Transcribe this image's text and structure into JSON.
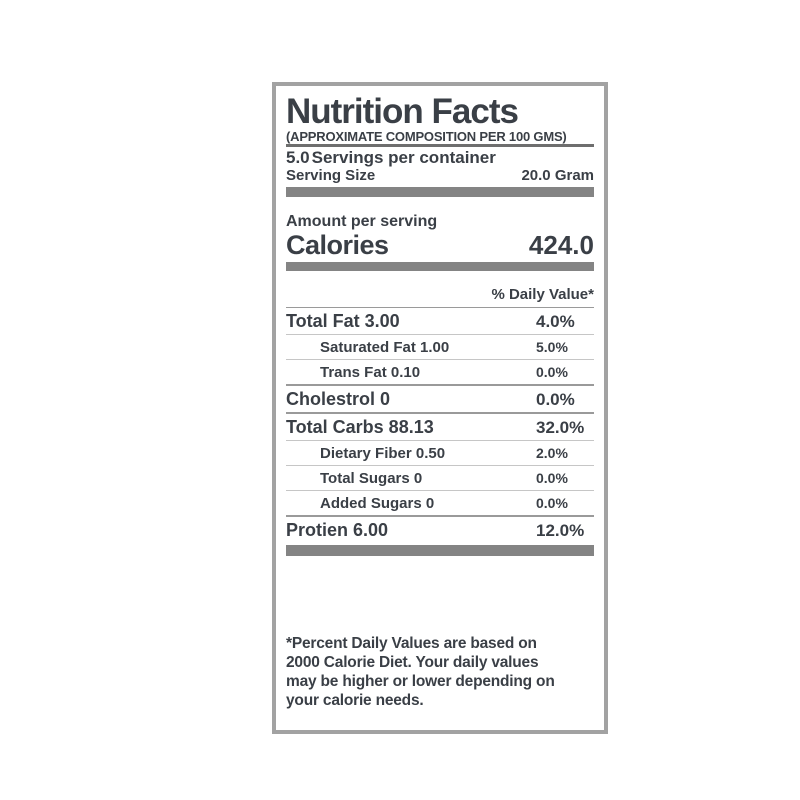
{
  "label": {
    "title": "Nutrition Facts",
    "subtitle": "(APPROXIMATE COMPOSITION PER 100 GMS)",
    "servings": {
      "value": "5.0",
      "text": "Servings per container"
    },
    "serving_size": {
      "label": "Serving Size",
      "value": "20.0 Gram"
    },
    "amount_per_serving_label": "Amount per serving",
    "calories": {
      "label": "Calories",
      "value": "424.0"
    },
    "daily_value_header": "% Daily Value*",
    "nutrients": [
      {
        "name": "Total Fat 3.00",
        "daily_value": "4.0%",
        "level": "main"
      },
      {
        "name": "Saturated Fat 1.00",
        "daily_value": "5.0%",
        "level": "sub"
      },
      {
        "name": "Trans Fat 0.10",
        "daily_value": "0.0%",
        "level": "sub"
      },
      {
        "name": "Cholestrol 0",
        "daily_value": "0.0%",
        "level": "main"
      },
      {
        "name": "Total Carbs 88.13",
        "daily_value": "32.0%",
        "level": "main"
      },
      {
        "name": "Dietary Fiber 0.50",
        "daily_value": "2.0%",
        "level": "sub"
      },
      {
        "name": "Total Sugars 0",
        "daily_value": "0.0%",
        "level": "sub"
      },
      {
        "name": "Added Sugars 0",
        "daily_value": "0.0%",
        "level": "sub"
      },
      {
        "name": "Protien 6.00",
        "daily_value": "12.0%",
        "level": "main"
      }
    ],
    "footnote_lines": [
      "*Percent Daily Values are based on",
      "2000 Calorie Diet. Your daily values",
      "may be higher or lower depending on",
      "your calorie needs."
    ],
    "colors": {
      "text": "#3a3f46",
      "thick_bar": "#848484",
      "divider_thin": "#c6c6c6",
      "divider_mid": "#9a9a9a",
      "header_rule": "#6e6e6e",
      "border": "#a2a2a2",
      "background": "#ffffff"
    }
  }
}
